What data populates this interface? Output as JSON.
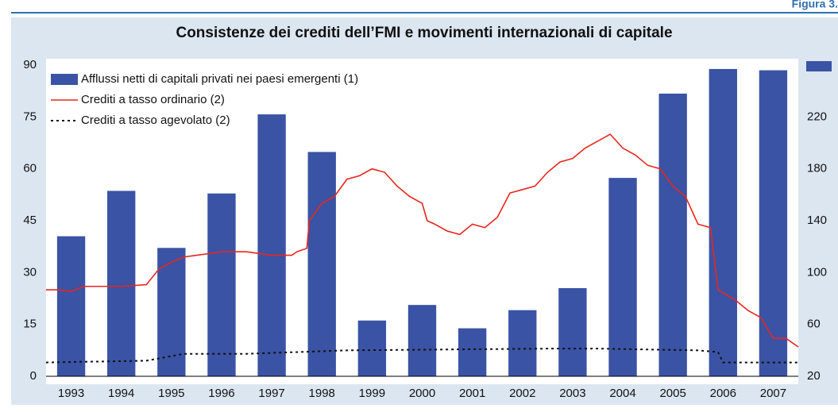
{
  "figure_label": "Figura 3.",
  "chart_data": {
    "type": "bar",
    "title": "Consistenze dei crediti dell’FMI e movimenti internazionali di capitale",
    "categories": [
      "1993",
      "1994",
      "1995",
      "1996",
      "1997",
      "1998",
      "1999",
      "2000",
      "2001",
      "2002",
      "2003",
      "2004",
      "2005",
      "2006",
      "2007"
    ],
    "series": [
      {
        "name": "Afflussi netti di capitali privati nei paesi emergenti (1)",
        "color": "#3a53a4",
        "axis": "y2",
        "kind": "bar",
        "values": [
          128,
          163,
          119,
          161,
          222,
          193,
          63,
          75,
          57,
          71,
          88,
          173,
          238,
          257,
          256
        ]
      },
      {
        "name": "Crediti a tasso ordinario (2)",
        "color": "#e8261f",
        "kind": "line",
        "dash": false,
        "x": [
          1993.0,
          1993.25,
          1993.5,
          1993.75,
          1994.0,
          1994.5,
          1995.0,
          1995.25,
          1995.5,
          1995.75,
          1996.0,
          1996.5,
          1997.0,
          1997.5,
          1997.9,
          1998.0,
          1998.2,
          1998.25,
          1998.5,
          1998.75,
          1999.0,
          1999.25,
          1999.5,
          1999.75,
          2000.0,
          2000.25,
          2000.5,
          2000.6,
          2000.75,
          2001.0,
          2001.25,
          2001.5,
          2001.75,
          2002.0,
          2002.25,
          2002.5,
          2002.75,
          2003.0,
          2003.25,
          2003.5,
          2003.75,
          2004.0,
          2004.25,
          2004.5,
          2004.75,
          2005.0,
          2005.25,
          2005.5,
          2005.75,
          2006.0,
          2006.25,
          2006.4,
          2006.75,
          2007.0,
          2007.25,
          2007.5,
          2007.75,
          2008.0
        ],
        "values": [
          25,
          25,
          24.5,
          26,
          26,
          26,
          26.5,
          31,
          33,
          34.5,
          35,
          36,
          36,
          35,
          35,
          36,
          37,
          45,
          50,
          52,
          57,
          58,
          60,
          59,
          55,
          52,
          50,
          45,
          44,
          42,
          41,
          44,
          43,
          46,
          53,
          54,
          55,
          59,
          62,
          63,
          66,
          68,
          70,
          66,
          64,
          61,
          60,
          55,
          52,
          44,
          43,
          25,
          22,
          19,
          17,
          11,
          11,
          8.5
        ]
      },
      {
        "name": "Crediti a tasso agevolato (2)",
        "color": "#111111",
        "kind": "line",
        "dash": true,
        "x": [
          1993.0,
          1995.0,
          1995.75,
          1997.0,
          1999.0,
          2003.0,
          2004.0,
          2006.0,
          2006.4,
          2006.5,
          2008.0
        ],
        "values": [
          4,
          4.5,
          6.5,
          6.5,
          7.5,
          8,
          8,
          7.5,
          7,
          4,
          4
        ]
      }
    ],
    "xlim": [
      1993,
      2008
    ],
    "ylim": [
      0,
      90
    ],
    "yticks": [
      0,
      15,
      30,
      45,
      60,
      75,
      90
    ],
    "y2lim": [
      20,
      260
    ],
    "y2ticks": [
      20,
      60,
      100,
      140,
      180,
      220
    ],
    "legend": "upper left",
    "grid": false
  }
}
